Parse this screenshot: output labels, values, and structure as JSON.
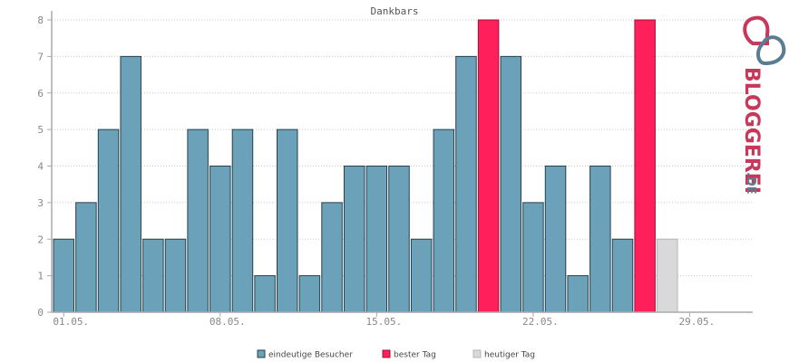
{
  "chart_data": {
    "type": "bar",
    "title": "Dankbars",
    "xlabel": "",
    "ylabel": "",
    "ylim": [
      0,
      8
    ],
    "yticks": [
      0,
      1,
      2,
      3,
      4,
      5,
      6,
      7,
      8
    ],
    "grid": true,
    "legend_position": "bottom",
    "x_tick_labels": [
      {
        "index": 0,
        "label": "01.05."
      },
      {
        "index": 7,
        "label": "08.05."
      },
      {
        "index": 14,
        "label": "15.05."
      },
      {
        "index": 21,
        "label": "22.05."
      },
      {
        "index": 28,
        "label": "29.05."
      }
    ],
    "values": [
      2,
      3,
      5,
      7,
      2,
      2,
      5,
      4,
      5,
      1,
      5,
      1,
      3,
      4,
      4,
      4,
      2,
      5,
      7,
      8,
      7,
      3,
      4,
      1,
      4,
      2,
      8,
      2
    ],
    "highlight": [
      "normal",
      "normal",
      "normal",
      "normal",
      "normal",
      "normal",
      "normal",
      "normal",
      "normal",
      "normal",
      "normal",
      "normal",
      "normal",
      "normal",
      "normal",
      "normal",
      "normal",
      "normal",
      "normal",
      "best",
      "normal",
      "normal",
      "normal",
      "normal",
      "normal",
      "normal",
      "best",
      "today"
    ],
    "colors": {
      "normal": "#6ca2b9",
      "best": "#ff1f5a",
      "today": "#d9d9d9",
      "normal_stroke": "#23414f",
      "best_stroke": "#a50f36",
      "today_stroke": "#b5b5b5"
    },
    "legend": [
      {
        "key": "normal",
        "label": "eindeutige Besucher"
      },
      {
        "key": "best",
        "label": "bester Tag"
      },
      {
        "key": "today",
        "label": "heutiger Tag"
      }
    ]
  },
  "brand": {
    "name": "BLOGGEREI",
    "suffix": ".DE",
    "colors": {
      "primary": "#c8385a",
      "secondary": "#5a7d92"
    },
    "icon": "logo-icon"
  }
}
